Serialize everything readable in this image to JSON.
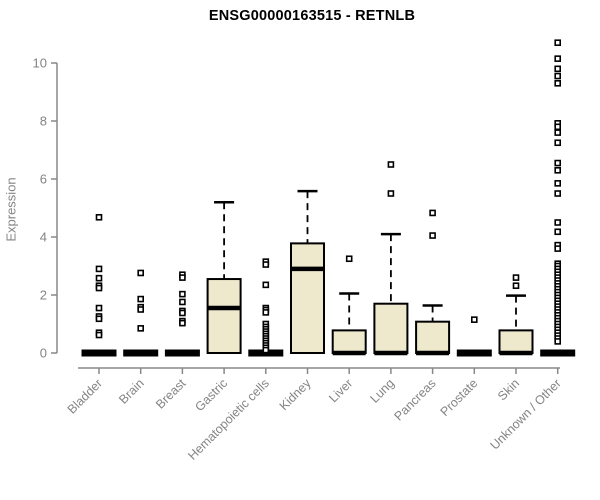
{
  "page": {
    "background": "#ffffff"
  },
  "chart_data": {
    "type": "boxplot",
    "title": "ENSG00000163515 - RETNLB",
    "xlabel": "",
    "ylabel": "Expression",
    "ylim": [
      0,
      10.8
    ],
    "yticks": [
      0,
      2,
      4,
      6,
      8,
      10
    ],
    "grid": false,
    "legend": "none",
    "colors": {
      "box_fill": "#EEE8CD",
      "box_stroke": "#000000",
      "median": "#000000",
      "outlier": "#000000",
      "axis": "#888888",
      "tick_labels": "#848484",
      "title": "#000000"
    },
    "categories": [
      "Bladder",
      "Brain",
      "Breast",
      "Gastric",
      "Hematopoietic cells",
      "Kidney",
      "Liver",
      "Lung",
      "Pancreas",
      "Prostate",
      "Skin",
      "Unknown / Other"
    ],
    "boxes": [
      {
        "category": "Bladder",
        "whisker_low": 0,
        "q1": 0,
        "median": 0,
        "q3": 0,
        "whisker_high": 0,
        "outliers": [
          4.68,
          2.9,
          2.58,
          2.32,
          2.24,
          1.55,
          1.26,
          1.18,
          0.7,
          0.62
        ]
      },
      {
        "category": "Brain",
        "whisker_low": 0,
        "q1": 0,
        "median": 0,
        "q3": 0,
        "whisker_high": 0,
        "outliers": [
          2.76,
          1.86,
          1.58,
          1.5,
          0.85
        ]
      },
      {
        "category": "Breast",
        "whisker_low": 0,
        "q1": 0,
        "median": 0,
        "q3": 0,
        "whisker_high": 0,
        "outliers": [
          2.7,
          2.6,
          2.03,
          1.76,
          1.45,
          1.38,
          1.1,
          1.03
        ]
      },
      {
        "category": "Gastric",
        "whisker_low": 0,
        "q1": 0,
        "median": 1.55,
        "q3": 2.55,
        "whisker_high": 5.2,
        "outliers": []
      },
      {
        "category": "Hematopoietic cells",
        "whisker_low": 0,
        "q1": 0,
        "median": 0,
        "q3": 0,
        "whisker_high": 0,
        "outliers": [
          3.15,
          3.05,
          2.35,
          1.55,
          1.48,
          1.4,
          1.0,
          0.9,
          0.82,
          0.74,
          0.66,
          0.58,
          0.5,
          0.42,
          0.34,
          0.26,
          0.18,
          0.1
        ]
      },
      {
        "category": "Kidney",
        "whisker_low": 0,
        "q1": 0,
        "median": 2.9,
        "q3": 3.78,
        "whisker_high": 5.58,
        "outliers": []
      },
      {
        "category": "Liver",
        "whisker_low": 0,
        "q1": 0,
        "median": 0,
        "q3": 0.78,
        "whisker_high": 2.05,
        "outliers": [
          3.25
        ]
      },
      {
        "category": "Lung",
        "whisker_low": 0,
        "q1": 0,
        "median": 0,
        "q3": 1.7,
        "whisker_high": 4.1,
        "outliers": [
          6.5,
          5.5
        ]
      },
      {
        "category": "Pancreas",
        "whisker_low": 0,
        "q1": 0,
        "median": 0,
        "q3": 1.08,
        "whisker_high": 1.64,
        "outliers": [
          4.83,
          4.05
        ]
      },
      {
        "category": "Prostate",
        "whisker_low": 0,
        "q1": 0,
        "median": 0,
        "q3": 0,
        "whisker_high": 0,
        "outliers": [
          1.15
        ]
      },
      {
        "category": "Skin",
        "whisker_low": 0,
        "q1": 0,
        "median": 0,
        "q3": 0.78,
        "whisker_high": 1.98,
        "outliers": [
          2.6,
          2.32
        ]
      },
      {
        "category": "Unknown / Other",
        "whisker_low": 0,
        "q1": 0,
        "median": 0,
        "q3": 0,
        "whisker_high": 0,
        "outliers": [
          10.7,
          10.15,
          9.8,
          9.55,
          9.3,
          7.92,
          7.8,
          7.6,
          7.25,
          6.55,
          6.3,
          5.85,
          5.5,
          4.5,
          4.18,
          3.72,
          3.6,
          3.08,
          3.0,
          2.9,
          2.8,
          2.7,
          2.6,
          2.5,
          2.4,
          2.3,
          2.2,
          2.1,
          2.0,
          1.9,
          1.8,
          1.7,
          1.6,
          1.5,
          1.4,
          1.3,
          1.2,
          1.1,
          1.0,
          0.9,
          0.8,
          0.7,
          0.6,
          0.5,
          0.4
        ]
      }
    ]
  }
}
